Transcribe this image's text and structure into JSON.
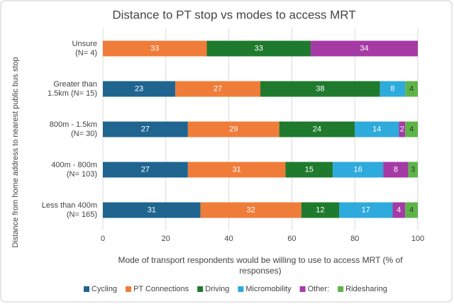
{
  "chart_data": {
    "type": "stacked-bar-horizontal",
    "title": "Distance to PT stop vs modes to access MRT",
    "x_label": [
      "Mode of transport respondents would be willing to use to access MRT (% of",
      "responses)"
    ],
    "y_label": "Distance from home address to nearest public bus stop",
    "categories": [
      [
        "Unsure",
        "(N= 4)"
      ],
      [
        "Greater than",
        "1.5km (N= 15)"
      ],
      [
        "800m - 1.5km",
        "(N= 30)"
      ],
      [
        "400m - 800m",
        "(N= 103)"
      ],
      [
        "Less than 400m",
        "(N= 165)"
      ]
    ],
    "series": [
      {
        "name": "Cycling",
        "color": "#1f6590",
        "values": [
          null,
          23,
          27,
          27,
          31
        ]
      },
      {
        "name": "PT Connections",
        "color": "#f07c3a",
        "values": [
          33,
          27,
          29,
          31,
          32
        ]
      },
      {
        "name": "Driving",
        "color": "#1f7a2e",
        "values": [
          33,
          38,
          24,
          15,
          12
        ]
      },
      {
        "name": "Micromobility",
        "color": "#2eaadc",
        "values": [
          null,
          8,
          14,
          16,
          17
        ]
      },
      {
        "name": "Other:",
        "color": "#a53aa5",
        "values": [
          34,
          null,
          2,
          8,
          4
        ]
      },
      {
        "name": "Ridesharing",
        "color": "#5db548",
        "values": [
          null,
          4,
          4,
          3,
          4
        ]
      }
    ],
    "xlim": [
      0,
      100
    ],
    "xticks": [
      0,
      20,
      40,
      60,
      80,
      100
    ],
    "grid": true,
    "legend": "bottom"
  }
}
